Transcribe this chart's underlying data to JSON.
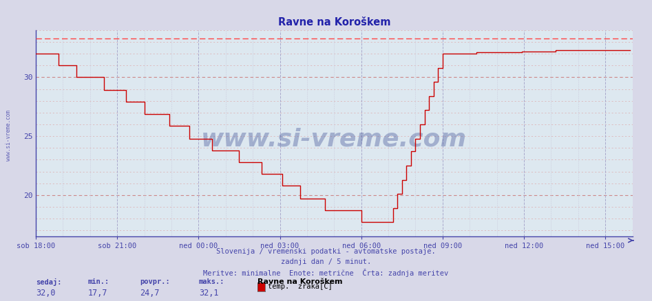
{
  "title": "Ravne na Koroškem",
  "background_color": "#d8d8e8",
  "plot_bg_color": "#dde8f0",
  "line_color": "#cc0000",
  "dashed_line_color": "#ff4444",
  "grid_h_major_color": "#cc8888",
  "grid_h_minor_color": "#ddaaaa",
  "grid_v_major_color": "#aaaacc",
  "grid_v_minor_color": "#ccccdd",
  "axis_color": "#4444aa",
  "title_color": "#2222aa",
  "y_min": 16.5,
  "y_max": 34.0,
  "dashed_y": 33.3,
  "x_labels": [
    "sob 18:00",
    "sob 21:00",
    "ned 00:00",
    "ned 03:00",
    "ned 06:00",
    "ned 09:00",
    "ned 12:00",
    "ned 15:00"
  ],
  "x_ticks_hours": [
    0,
    3,
    6,
    9,
    12,
    15,
    18,
    21
  ],
  "total_hours": 24,
  "footer_line1": "Slovenija / vremenski podatki - avtomatske postaje.",
  "footer_line2": "zadnji dan / 5 minut.",
  "footer_line3": "Meritve: minimalne  Enote: metrične  Črta: zadnja meritev",
  "footer_color": "#4444aa",
  "stat_labels": [
    "sedaj:",
    "min.:",
    "povpr.:",
    "maks.:"
  ],
  "stat_values": [
    "32,0",
    "17,7",
    "24,7",
    "32,1"
  ],
  "legend_station": "Ravne na Koroškem",
  "legend_item": "temp.  zraka[C]",
  "legend_color": "#cc0000",
  "watermark_text": "www.si-vreme.com",
  "watermark_color": "#1a2e80",
  "yticks": [
    20,
    25,
    30
  ]
}
